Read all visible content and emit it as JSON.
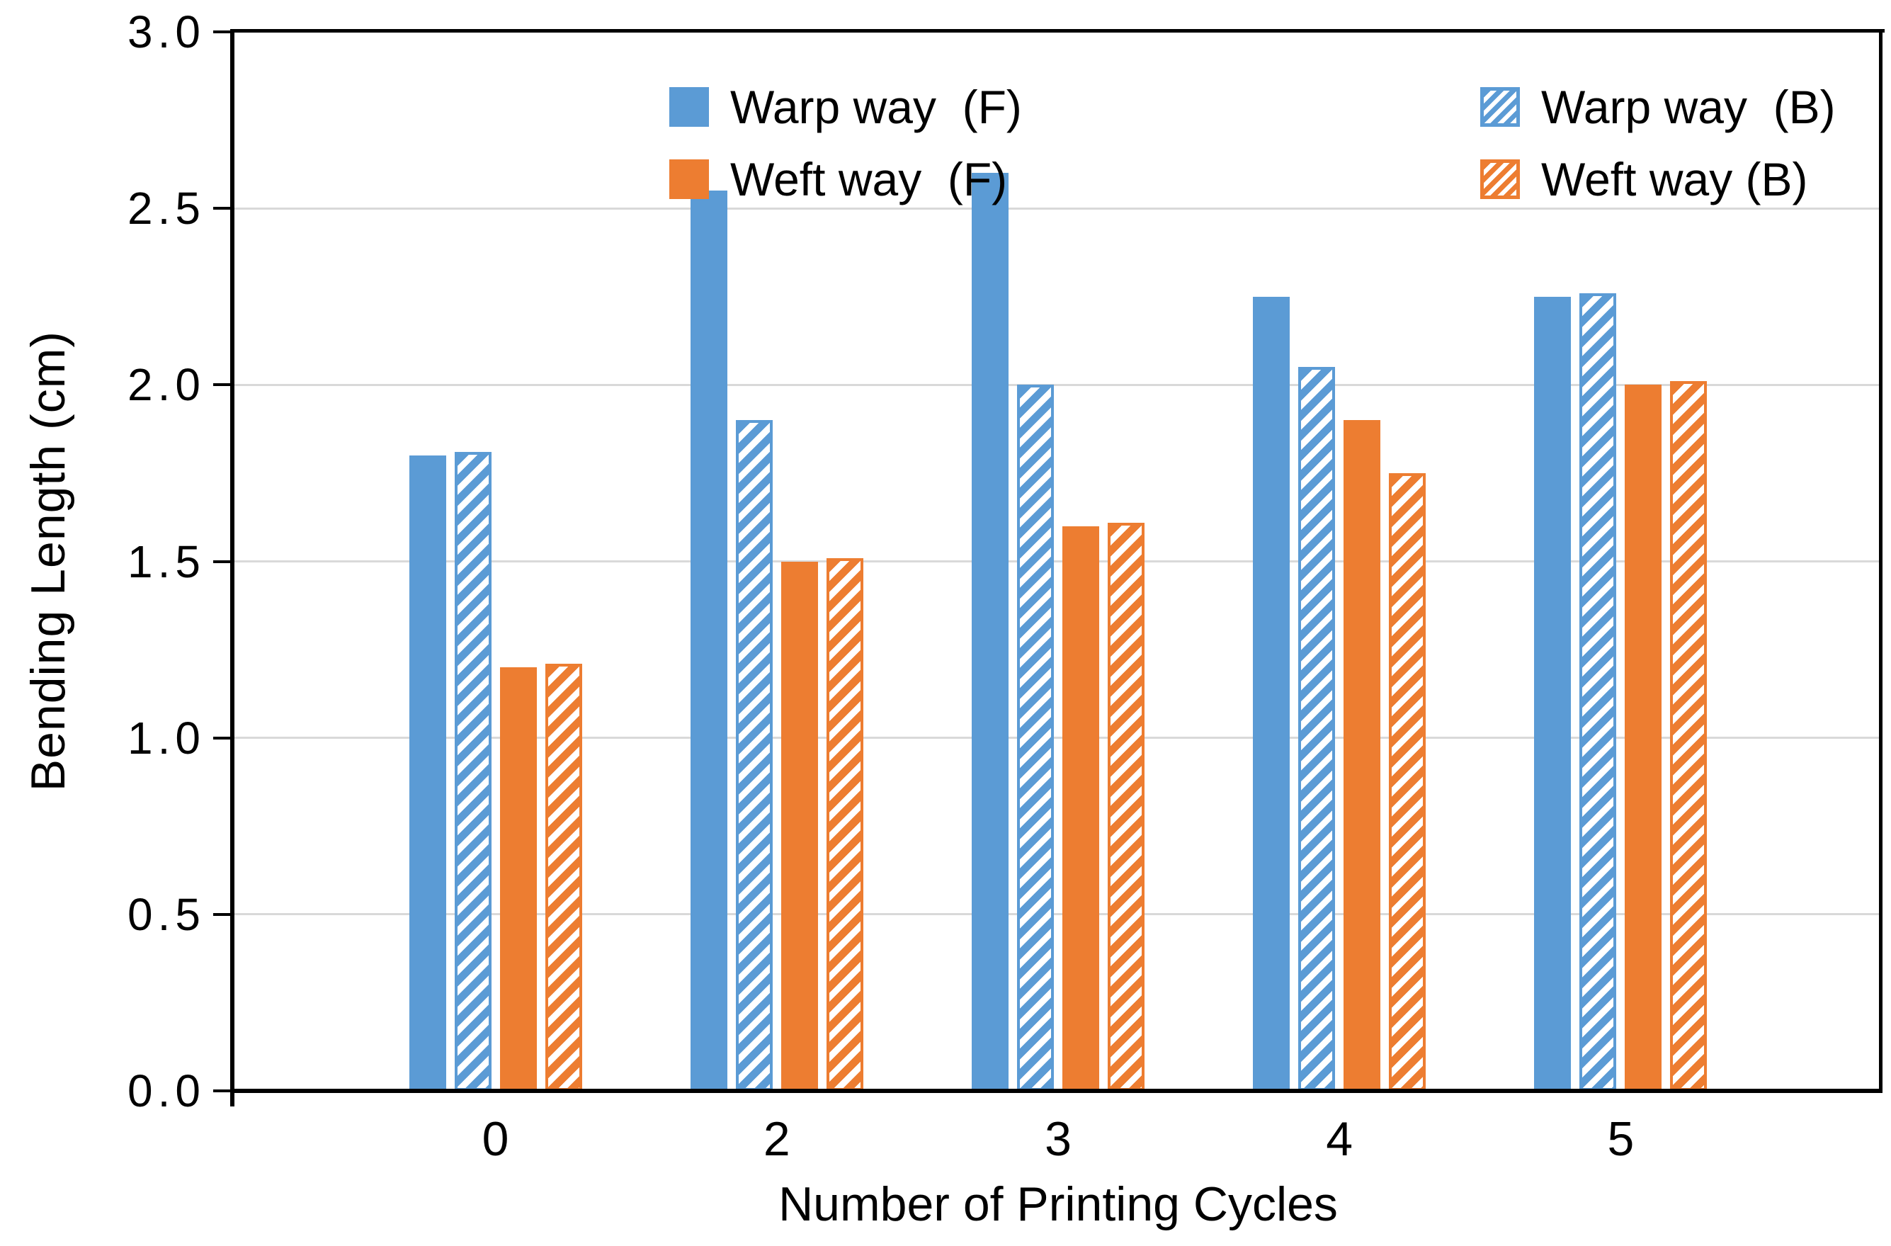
{
  "chart_data": {
    "type": "bar",
    "title": "",
    "xlabel": "Number of Printing Cycles",
    "ylabel": "Bending Length (cm)",
    "categories": [
      "0",
      "2",
      "3",
      "4",
      "5"
    ],
    "ymin": 0.0,
    "ymax": 3.0,
    "ytick_step": 0.5,
    "ytick_labels": [
      "0.0",
      "0.5",
      "1.0",
      "1.5",
      "2.0",
      "2.5",
      "3.0"
    ],
    "grid": true,
    "legend_position": "inside-top",
    "series": [
      {
        "name": "Warp way  (F)",
        "color": "#5B9BD5",
        "pattern": "solid",
        "values": [
          1.8,
          2.55,
          2.6,
          2.25,
          2.25
        ]
      },
      {
        "name": "Warp way  (B)",
        "color": "#5B9BD5",
        "pattern": "hatch",
        "values": [
          1.81,
          1.9,
          2.0,
          2.05,
          2.26
        ]
      },
      {
        "name": "Weft way  (F)",
        "color": "#ED7D31",
        "pattern": "solid",
        "values": [
          1.2,
          1.5,
          1.6,
          1.9,
          2.0
        ]
      },
      {
        "name": "Weft way (B)",
        "color": "#ED7D31",
        "pattern": "hatch",
        "values": [
          1.21,
          1.51,
          1.61,
          1.75,
          2.01
        ]
      }
    ],
    "colors": {
      "grid": "#D9D9D9",
      "axis": "#000000",
      "text": "#000000",
      "background": "#FFFFFF"
    }
  }
}
